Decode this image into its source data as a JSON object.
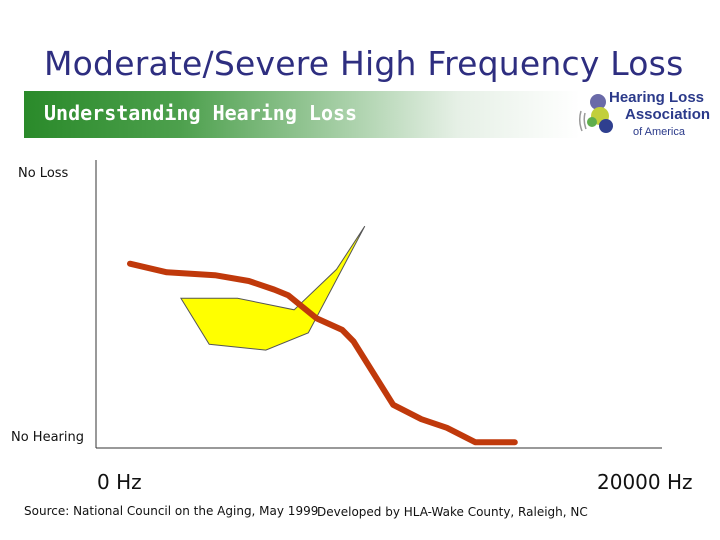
{
  "slide": {
    "title": "Moderate/Severe High Frequency Loss",
    "banner": "Understanding Hearing Loss",
    "logo": {
      "line1": "Hearing Loss",
      "line2": "Association",
      "line3": "of America"
    },
    "source": "Source: National Council on the Aging, May 1999",
    "credit": "Developed by HLA-Wake County, Raleigh, NC"
  },
  "colors": {
    "title": "#2e2e80",
    "banner_green": "#2a8a2a",
    "hearing_line": "#c0390b",
    "speech_banana_fill": "#ffff00",
    "speech_banana_stroke": "#555555"
  },
  "chart_data": {
    "type": "line",
    "title": "",
    "xlabel": "",
    "ylabel": "",
    "x_tick_labels": [
      "0 Hz",
      "20000 Hz"
    ],
    "y_tick_labels": [
      "No Loss",
      "No Hearing"
    ],
    "xlim": [
      0,
      20000
    ],
    "ylim": [
      0,
      100
    ],
    "y_direction": "top = No Loss, bottom = No Hearing",
    "grid": false,
    "series": [
      {
        "color": "#c0390b",
        "x": [
          1200,
          2500,
          4200,
          5400,
          6300,
          6800,
          7800,
          8700,
          9100,
          10500,
          11500,
          12400,
          13400,
          14800
        ],
        "y": [
          64,
          61,
          60,
          58,
          55,
          53,
          45,
          41,
          37,
          15,
          10,
          7,
          2,
          2
        ]
      }
    ],
    "speech_banana": {
      "fill": "#ffff00",
      "upper_edge": {
        "x": [
          3000,
          5000,
          7000,
          8500,
          9500
        ],
        "y": [
          52,
          52,
          48,
          62,
          77
        ]
      },
      "lower_edge": {
        "x": [
          3000,
          4000,
          6000,
          7500,
          9500
        ],
        "y": [
          52,
          36,
          34,
          40,
          77
        ]
      }
    }
  }
}
